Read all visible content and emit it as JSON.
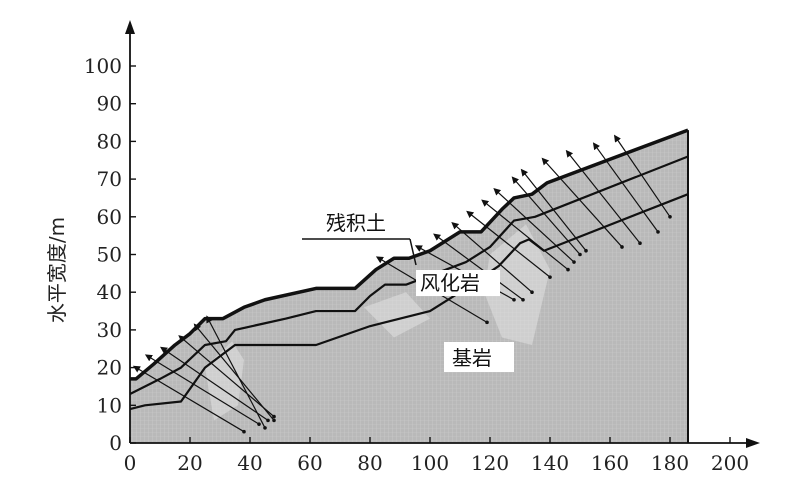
{
  "axes": {
    "ylabel": "水平宽度/m",
    "x_ticks": [
      "0",
      "20",
      "40",
      "60",
      "80",
      "100",
      "120",
      "140",
      "160",
      "180",
      "200"
    ],
    "y_ticks": [
      "0",
      "10",
      "20",
      "30",
      "40",
      "50",
      "60",
      "70",
      "80",
      "90",
      "100"
    ],
    "xlim": [
      0,
      210
    ],
    "ylim": [
      0,
      108
    ]
  },
  "labels": {
    "residual_soil": "残积土",
    "weathered_rock": "风化岩",
    "bedrock": "基岩"
  },
  "colors": {
    "domain_fill": "#b9b9b9",
    "mesh_line": "#d6d6d6",
    "weathered_patch": "#e2e2e2",
    "boundary": "#111111"
  },
  "chart_data": {
    "type": "diagram",
    "ground_surface": [
      [
        0,
        17
      ],
      [
        2,
        17
      ],
      [
        8,
        21
      ],
      [
        15,
        26
      ],
      [
        20,
        29
      ],
      [
        25,
        33
      ],
      [
        31,
        33
      ],
      [
        38,
        36
      ],
      [
        45,
        38
      ],
      [
        62,
        41
      ],
      [
        75,
        41
      ],
      [
        82,
        46
      ],
      [
        88,
        49
      ],
      [
        93,
        49
      ],
      [
        100,
        51
      ],
      [
        110,
        56
      ],
      [
        117,
        56
      ],
      [
        124,
        62
      ],
      [
        128,
        65
      ],
      [
        134,
        66
      ],
      [
        139,
        69
      ],
      [
        186,
        83
      ]
    ],
    "residual_weathered_interface": [
      [
        0,
        13
      ],
      [
        10,
        17
      ],
      [
        17,
        20
      ],
      [
        25,
        26
      ],
      [
        32,
        27
      ],
      [
        35,
        30
      ],
      [
        52,
        33
      ],
      [
        62,
        35
      ],
      [
        75,
        35
      ],
      [
        80,
        39
      ],
      [
        85,
        42
      ],
      [
        92,
        42
      ],
      [
        112,
        48
      ],
      [
        120,
        52
      ],
      [
        128,
        59
      ],
      [
        135,
        60
      ],
      [
        186,
        76
      ]
    ],
    "weathered_bedrock_interface": [
      [
        0,
        9
      ],
      [
        5,
        10
      ],
      [
        17,
        11
      ],
      [
        25,
        20
      ],
      [
        30,
        23
      ],
      [
        35,
        26
      ],
      [
        40,
        26
      ],
      [
        62,
        26
      ],
      [
        80,
        31
      ],
      [
        100,
        35
      ],
      [
        112,
        41
      ],
      [
        123,
        47
      ],
      [
        130,
        53
      ],
      [
        133,
        54
      ],
      [
        138,
        51
      ],
      [
        186,
        66
      ]
    ],
    "anchors": [
      {
        "head": [
          2,
          20
        ],
        "tail": [
          38,
          3
        ]
      },
      {
        "head": [
          6,
          23
        ],
        "tail": [
          43,
          5
        ]
      },
      {
        "head": [
          11,
          25
        ],
        "tail": [
          46,
          6
        ]
      },
      {
        "head": [
          17,
          28
        ],
        "tail": [
          48,
          7
        ]
      },
      {
        "head": [
          22,
          31
        ],
        "tail": [
          48,
          6
        ]
      },
      {
        "head": [
          26,
          33
        ],
        "tail": [
          45,
          4
        ]
      },
      {
        "head": [
          83,
          49
        ],
        "tail": [
          119,
          32
        ]
      },
      {
        "head": [
          96,
          52
        ],
        "tail": [
          128,
          38
        ]
      },
      {
        "head": [
          102,
          55
        ],
        "tail": [
          131,
          38
        ]
      },
      {
        "head": [
          108,
          58
        ],
        "tail": [
          134,
          40
        ]
      },
      {
        "head": [
          113,
          61
        ],
        "tail": [
          140,
          44
        ]
      },
      {
        "head": [
          118,
          64
        ],
        "tail": [
          146,
          46
        ]
      },
      {
        "head": [
          122,
          67
        ],
        "tail": [
          148,
          48
        ]
      },
      {
        "head": [
          128,
          70
        ],
        "tail": [
          150,
          50
        ]
      },
      {
        "head": [
          131,
          72
        ],
        "tail": [
          152,
          51
        ]
      },
      {
        "head": [
          138,
          75
        ],
        "tail": [
          164,
          52
        ]
      },
      {
        "head": [
          146,
          77
        ],
        "tail": [
          170,
          53
        ]
      },
      {
        "head": [
          155,
          79
        ],
        "tail": [
          176,
          56
        ]
      },
      {
        "head": [
          162,
          81
        ],
        "tail": [
          180,
          60
        ]
      }
    ]
  }
}
